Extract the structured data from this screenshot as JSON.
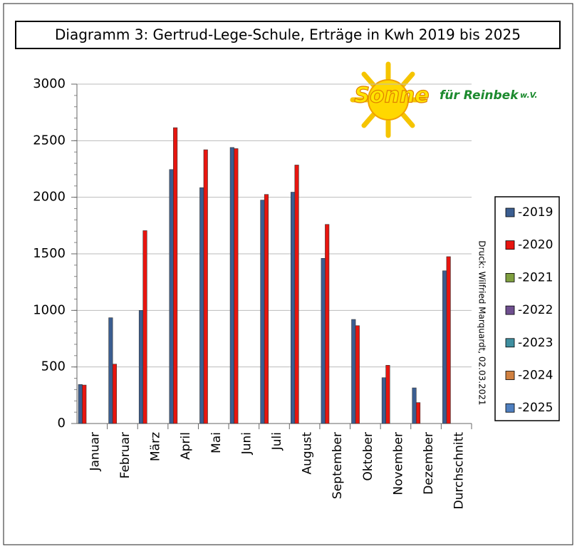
{
  "chart_data": {
    "type": "bar",
    "title": "Diagramm 3: Gertrud-Lege-Schule, Erträge in Kwh 2019 bis 2025",
    "categories": [
      "Januar",
      "Februar",
      "März",
      "April",
      "Mai",
      "Juni",
      "Juli",
      "August",
      "September",
      "Oktober",
      "November",
      "Dezember",
      "Durchschnitt"
    ],
    "series": [
      {
        "name": "-2019",
        "color": "#3b5e91",
        "values": [
          345,
          935,
          1000,
          2245,
          2085,
          2440,
          1975,
          2045,
          1460,
          920,
          405,
          315,
          1350
        ]
      },
      {
        "name": "-2020",
        "color": "#e8150f",
        "values": [
          340,
          525,
          1705,
          2615,
          2420,
          2430,
          2025,
          2285,
          1760,
          865,
          515,
          185,
          1475
        ]
      },
      {
        "name": "-2021",
        "color": "#7f9f3f",
        "values": [
          null,
          null,
          null,
          null,
          null,
          null,
          null,
          null,
          null,
          null,
          null,
          null,
          null
        ]
      },
      {
        "name": "-2022",
        "color": "#6f4f8f",
        "values": [
          null,
          null,
          null,
          null,
          null,
          null,
          null,
          null,
          null,
          null,
          null,
          null,
          null
        ]
      },
      {
        "name": "-2023",
        "color": "#3f8fa0",
        "values": [
          null,
          null,
          null,
          null,
          null,
          null,
          null,
          null,
          null,
          null,
          null,
          null,
          null
        ]
      },
      {
        "name": "-2024",
        "color": "#d08040",
        "values": [
          null,
          null,
          null,
          null,
          null,
          null,
          null,
          null,
          null,
          null,
          null,
          null,
          null
        ]
      },
      {
        "name": "-2025",
        "color": "#4f80c0",
        "values": [
          null,
          null,
          null,
          null,
          null,
          null,
          null,
          null,
          null,
          null,
          null,
          null,
          null
        ]
      }
    ],
    "ylim": [
      0,
      3000
    ],
    "yticks": [
      0,
      500,
      1000,
      1500,
      2000,
      2500,
      3000
    ],
    "grid": true,
    "legend": "right",
    "annotations": [
      "Druck: Wilfried Marquardt, 02.03.2021",
      "Sonne",
      "für Reinbek",
      "w.V."
    ]
  }
}
